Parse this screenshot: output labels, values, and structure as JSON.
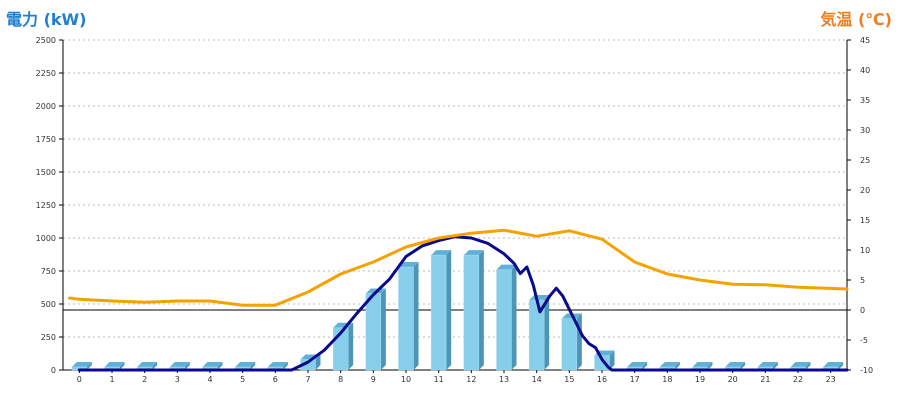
{
  "chart_data": {
    "type": "bar",
    "title": "",
    "y_left_label": "電力 (kW)",
    "y_right_label": "気温 (℃)",
    "categories": [
      "0",
      "1",
      "2",
      "3",
      "4",
      "5",
      "6",
      "7",
      "8",
      "9",
      "10",
      "11",
      "12",
      "13",
      "14",
      "15",
      "16",
      "17",
      "18",
      "19",
      "20",
      "21",
      "22",
      "23"
    ],
    "ylim_left": [
      0,
      2500
    ],
    "yticks_left": [
      "0",
      "250",
      "500",
      "750",
      "1000",
      "1250",
      "1500",
      "1750",
      "2000",
      "2250",
      "2500"
    ],
    "ylim_right": [
      -10,
      45
    ],
    "yticks_right": [
      "-10",
      "-5",
      "0",
      "5",
      "10",
      "15",
      "20",
      "25",
      "30",
      "35",
      "40",
      "45"
    ],
    "grid": true,
    "series": [
      {
        "type": "bar",
        "axis": "left",
        "color": "#87ceeb",
        "values": [
          0,
          0,
          0,
          0,
          0,
          0,
          0,
          80,
          320,
          580,
          780,
          870,
          870,
          760,
          530,
          390,
          110,
          0,
          0,
          0,
          0,
          0,
          0,
          0
        ]
      },
      {
        "type": "line",
        "axis": "left",
        "color": "#0a0a8c",
        "x": [
          0,
          6.5,
          7,
          7.5,
          8,
          8.5,
          9,
          9.5,
          10,
          10.5,
          11,
          11.5,
          12,
          12.5,
          13,
          13.3,
          13.5,
          13.7,
          13.9,
          14.1,
          14.4,
          14.6,
          14.8,
          15,
          15.2,
          15.4,
          15.6,
          15.8,
          16,
          16.2,
          16.3,
          23.5
        ],
        "values": [
          0,
          0,
          60,
          150,
          280,
          430,
          570,
          690,
          860,
          940,
          980,
          1010,
          1000,
          960,
          880,
          810,
          730,
          780,
          640,
          440,
          560,
          620,
          560,
          460,
          360,
          260,
          200,
          170,
          80,
          20,
          0,
          0
        ]
      },
      {
        "type": "line",
        "axis": "right",
        "color": "#f5a200",
        "x": [
          -0.3,
          0,
          1,
          2,
          3,
          4,
          5,
          6,
          7,
          8,
          9,
          10,
          11,
          12,
          13,
          14,
          15,
          16,
          17,
          18,
          19,
          20,
          21,
          22,
          23,
          23.5
        ],
        "values": [
          2,
          1.8,
          1.5,
          1.3,
          1.5,
          1.5,
          0.8,
          0.8,
          3,
          6,
          8,
          10.5,
          12,
          12.8,
          13.3,
          12.3,
          13.2,
          11.8,
          8,
          6,
          5,
          4.3,
          4.2,
          3.8,
          3.6,
          3.5
        ]
      }
    ],
    "reference_line_right": 0
  }
}
